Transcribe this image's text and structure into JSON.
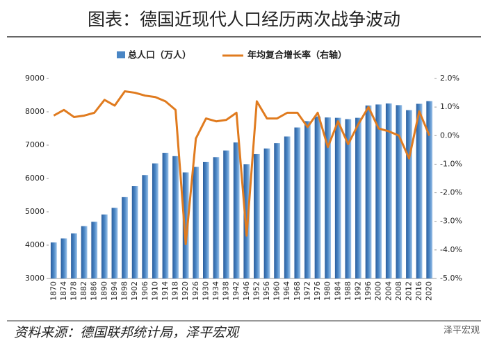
{
  "chart_data": {
    "type": "bar-line",
    "title": "图表：德国近现代人口经历两次战争波动",
    "source": "资料来源：德国联邦统计局，泽平宏观",
    "watermark": "泽平宏观",
    "categories": [
      "1870",
      "1874",
      "1878",
      "1882",
      "1886",
      "1890",
      "1894",
      "1898",
      "1902",
      "1906",
      "1910",
      "1914",
      "1918",
      "1920",
      "1926",
      "1930",
      "1934",
      "1938",
      "1942",
      "1946",
      "1952",
      "1956",
      "1960",
      "1964",
      "1968",
      "1972",
      "1976",
      "1980",
      "1984",
      "1988",
      "1992",
      "1996",
      "2000",
      "2004",
      "2008",
      "2012",
      "2016",
      "2020"
    ],
    "series": [
      {
        "name": "总人口（万人）",
        "type": "bar",
        "color": "#4a86c5",
        "values": [
          4080,
          4200,
          4350,
          4570,
          4700,
          4920,
          5120,
          5440,
          5770,
          6100,
          6450,
          6770,
          6670,
          6180,
          6350,
          6500,
          6640,
          6840,
          7080,
          6430,
          6730,
          6900,
          7060,
          7260,
          7530,
          7720,
          7860,
          7830,
          7820,
          7780,
          7820,
          8190,
          8220,
          8250,
          8200,
          8050,
          8240,
          8320
        ]
      },
      {
        "name": "年均复合增长率（右轴）",
        "type": "line",
        "axis": "y2",
        "color": "#e07b1f",
        "values": [
          0.7,
          0.9,
          0.65,
          0.7,
          0.8,
          1.25,
          1.05,
          1.55,
          1.5,
          1.4,
          1.35,
          1.2,
          0.9,
          -3.8,
          -0.1,
          0.6,
          0.5,
          0.55,
          0.8,
          -3.5,
          1.2,
          0.6,
          0.6,
          0.8,
          0.8,
          0.3,
          0.8,
          -0.4,
          0.5,
          -0.3,
          0.4,
          1.0,
          0.25,
          0.15,
          0.0,
          -0.8,
          0.85,
          0.0
        ]
      }
    ],
    "ylim": [
      3000,
      9000
    ],
    "yticks": [
      3000,
      4000,
      5000,
      6000,
      7000,
      8000,
      9000
    ],
    "y2lim": [
      -5,
      2
    ],
    "y2ticks": [
      {
        "value": -5,
        "label": "-5.0%"
      },
      {
        "value": -4,
        "label": "-4.0%"
      },
      {
        "value": -3,
        "label": "-3.0%"
      },
      {
        "value": -2,
        "label": "-2.0%"
      },
      {
        "value": -1,
        "label": "-1.0%"
      },
      {
        "value": 0,
        "label": "0.0%"
      },
      {
        "value": 1,
        "label": "1.0%"
      },
      {
        "value": 2,
        "label": "2.0%"
      }
    ]
  }
}
